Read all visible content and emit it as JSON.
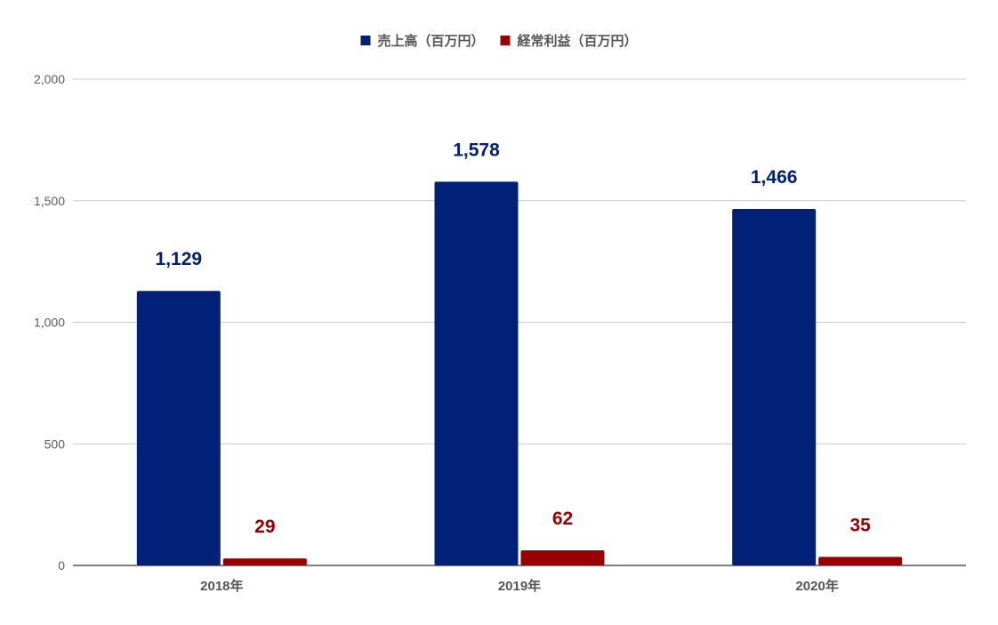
{
  "chart_data": {
    "type": "bar",
    "categories": [
      "2018年",
      "2019年",
      "2020年"
    ],
    "series": [
      {
        "name": "売上高（百万円）",
        "values": [
          1129,
          1578,
          1466
        ],
        "color": "#002177",
        "labels": [
          "1,129",
          "1,578",
          "1,466"
        ]
      },
      {
        "name": "経常利益（百万円）",
        "values": [
          29,
          62,
          35
        ],
        "color": "#990000",
        "labels": [
          "29",
          "62",
          "35"
        ]
      }
    ],
    "title": "",
    "xlabel": "",
    "ylabel": "",
    "ylim": [
      0,
      2000
    ],
    "yticks": [
      0,
      500,
      1000,
      1500,
      2000
    ],
    "ytick_labels": [
      "0",
      "500",
      "1,000",
      "1,500",
      "2,000"
    ],
    "grid": true,
    "legend_position": "top-center",
    "colors": {
      "grid": "#cccccc",
      "axis": "#333333"
    }
  }
}
